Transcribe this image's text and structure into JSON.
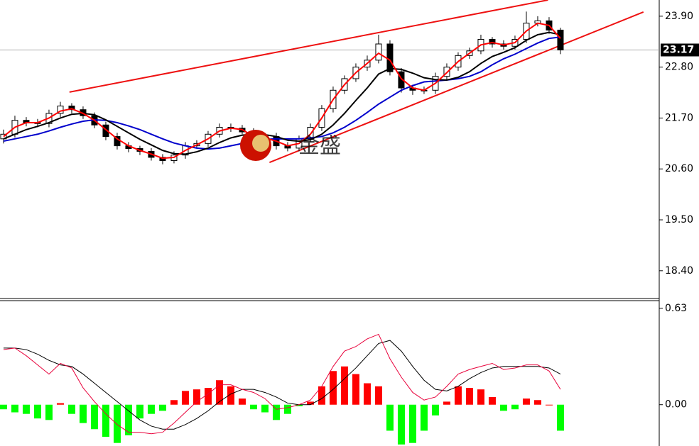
{
  "chart_data": [
    {
      "type": "candlestick",
      "xlim": [
        -0.31,
        57.69
      ],
      "ylim": [
        17.8,
        24.25
      ],
      "yticks": [
        {
          "value": 18.4,
          "label": "18.40"
        },
        {
          "value": 19.5,
          "label": "19.50"
        },
        {
          "value": 20.6,
          "label": "20.60"
        },
        {
          "value": 21.7,
          "label": "21.70"
        },
        {
          "value": 22.8,
          "label": "22.80"
        },
        {
          "value": 23.9,
          "label": "23.90"
        }
      ],
      "last_price": {
        "value": 23.17,
        "label": "23.17"
      },
      "watermark": "金盛",
      "open": [
        21.25,
        21.35,
        21.65,
        21.6,
        21.58,
        21.8,
        21.96,
        21.88,
        21.75,
        21.55,
        21.3,
        21.1,
        21.04,
        20.98,
        20.85,
        20.78,
        20.9,
        21.1,
        21.15,
        21.35,
        21.5,
        21.48,
        21.4,
        21.2,
        21.3,
        21.1,
        21.05,
        21.25,
        21.5,
        21.9,
        22.3,
        22.55,
        22.8,
        22.95,
        23.3,
        22.7,
        22.35,
        22.3,
        22.3,
        22.6,
        22.8,
        23.05,
        23.15,
        23.4,
        23.3,
        23.25,
        23.4,
        23.75,
        23.8,
        23.6
      ],
      "high": [
        21.45,
        21.75,
        21.72,
        21.68,
        21.88,
        22.05,
        22.02,
        21.95,
        21.82,
        21.62,
        21.38,
        21.18,
        21.1,
        21.05,
        20.92,
        20.98,
        21.18,
        21.22,
        21.42,
        21.58,
        21.58,
        21.55,
        21.48,
        21.38,
        21.38,
        21.18,
        21.32,
        21.58,
        21.98,
        22.38,
        22.62,
        22.88,
        23.05,
        23.5,
        23.38,
        22.78,
        22.42,
        22.38,
        22.68,
        22.88,
        23.12,
        23.22,
        23.5,
        23.45,
        23.38,
        23.48,
        24.0,
        23.9,
        23.88,
        23.65
      ],
      "low": [
        21.15,
        21.28,
        21.52,
        21.5,
        21.5,
        21.72,
        21.8,
        21.68,
        21.48,
        21.22,
        21.02,
        20.96,
        20.9,
        20.78,
        20.7,
        20.72,
        20.82,
        21.05,
        21.08,
        21.28,
        21.4,
        21.35,
        21.12,
        21.15,
        21.02,
        20.98,
        20.98,
        21.18,
        21.42,
        21.82,
        22.22,
        22.48,
        22.72,
        22.88,
        22.62,
        22.25,
        22.2,
        22.22,
        22.22,
        22.52,
        22.72,
        22.98,
        23.08,
        23.22,
        23.18,
        23.18,
        23.32,
        23.68,
        23.52,
        23.08
      ],
      "close": [
        21.35,
        21.65,
        21.6,
        21.58,
        21.8,
        21.96,
        21.88,
        21.75,
        21.55,
        21.3,
        21.1,
        21.04,
        20.98,
        20.85,
        20.78,
        20.9,
        21.1,
        21.15,
        21.35,
        21.5,
        21.48,
        21.4,
        21.2,
        21.3,
        21.1,
        21.05,
        21.25,
        21.5,
        21.9,
        22.3,
        22.55,
        22.8,
        22.95,
        23.3,
        22.7,
        22.35,
        22.3,
        22.3,
        22.6,
        22.8,
        23.05,
        23.15,
        23.4,
        23.3,
        23.25,
        23.4,
        23.75,
        23.8,
        23.6,
        23.17
      ],
      "series": [
        {
          "color": "#0000cc",
          "values": [
            21.2,
            21.25,
            21.3,
            21.35,
            21.42,
            21.5,
            21.57,
            21.63,
            21.66,
            21.65,
            21.6,
            21.53,
            21.45,
            21.35,
            21.25,
            21.16,
            21.1,
            21.05,
            21.03,
            21.05,
            21.1,
            21.15,
            21.2,
            21.24,
            21.25,
            21.25,
            21.25,
            21.27,
            21.3,
            21.38,
            21.5,
            21.65,
            21.82,
            22.0,
            22.15,
            22.3,
            22.4,
            22.48,
            22.5,
            22.52,
            22.55,
            22.6,
            22.7,
            22.85,
            22.98,
            23.08,
            23.2,
            23.32,
            23.42,
            23.45
          ]
        },
        {
          "color": "#000000",
          "values": [
            21.25,
            21.35,
            21.45,
            21.52,
            21.6,
            21.7,
            21.78,
            21.8,
            21.77,
            21.66,
            21.52,
            21.38,
            21.24,
            21.12,
            21.0,
            20.93,
            20.92,
            20.97,
            21.05,
            21.17,
            21.27,
            21.33,
            21.35,
            21.34,
            21.3,
            21.22,
            21.2,
            21.23,
            21.35,
            21.55,
            21.8,
            22.08,
            22.35,
            22.65,
            22.77,
            22.75,
            22.67,
            22.57,
            22.53,
            22.52,
            22.58,
            22.7,
            22.88,
            23.03,
            23.12,
            23.22,
            23.38,
            23.5,
            23.55,
            23.5
          ]
        },
        {
          "color": "#ff0000",
          "values": [
            21.3,
            21.5,
            21.6,
            21.6,
            21.7,
            21.85,
            21.9,
            21.8,
            21.65,
            21.45,
            21.25,
            21.1,
            21.0,
            20.92,
            20.83,
            20.85,
            21.0,
            21.12,
            21.25,
            21.42,
            21.48,
            21.45,
            21.3,
            21.27,
            21.2,
            21.1,
            21.15,
            21.35,
            21.7,
            22.1,
            22.42,
            22.68,
            22.88,
            23.1,
            22.95,
            22.55,
            22.35,
            22.3,
            22.45,
            22.68,
            22.92,
            23.1,
            23.28,
            23.33,
            23.28,
            23.33,
            23.58,
            23.75,
            23.7,
            23.42
          ]
        }
      ],
      "trendlines": [
        {
          "color": "#ee1111",
          "x": [
            5.8,
            47.9
          ],
          "y": [
            22.26,
            24.25
          ]
        },
        {
          "color": "#ee1111",
          "x": [
            23.4,
            56.3
          ],
          "y": [
            20.74,
            23.99
          ]
        }
      ]
    },
    {
      "type": "histogram",
      "xlim": [
        -0.31,
        57.69
      ],
      "ylim": [
        -0.27,
        0.68
      ],
      "yticks": [
        {
          "value": 0.63,
          "label": "0.63"
        },
        {
          "value": 0,
          "label": "0.00"
        }
      ],
      "colors": {
        "positive": "#ff0000",
        "negative": "#00ff00"
      },
      "values": [
        -0.03,
        -0.05,
        -0.06,
        -0.09,
        -0.1,
        0.01,
        -0.06,
        -0.12,
        -0.16,
        -0.21,
        -0.25,
        -0.2,
        -0.09,
        -0.06,
        -0.04,
        0.03,
        0.09,
        0.1,
        0.11,
        0.16,
        0.12,
        0.04,
        -0.03,
        -0.05,
        -0.1,
        -0.06,
        -0.01,
        0.02,
        0.12,
        0.22,
        0.25,
        0.2,
        0.14,
        0.12,
        -0.17,
        -0.26,
        -0.25,
        -0.17,
        -0.07,
        0.02,
        0.12,
        0.11,
        0.1,
        0.05,
        -0.04,
        -0.03,
        0.04,
        0.03,
        0.0,
        -0.17
      ],
      "series": [
        {
          "color": "#000000",
          "values": [
            0.37,
            0.37,
            0.36,
            0.33,
            0.29,
            0.26,
            0.25,
            0.2,
            0.14,
            0.08,
            0.02,
            -0.04,
            -0.1,
            -0.14,
            -0.16,
            -0.16,
            -0.13,
            -0.09,
            -0.04,
            0.02,
            0.07,
            0.1,
            0.1,
            0.08,
            0.05,
            0.01,
            0.0,
            0.0,
            0.04,
            0.1,
            0.17,
            0.24,
            0.32,
            0.4,
            0.42,
            0.35,
            0.25,
            0.16,
            0.1,
            0.09,
            0.12,
            0.17,
            0.21,
            0.24,
            0.25,
            0.25,
            0.25,
            0.25,
            0.24,
            0.2
          ]
        },
        {
          "color": "#e8003a",
          "values": [
            0.36,
            0.37,
            0.32,
            0.26,
            0.2,
            0.27,
            0.24,
            0.11,
            0.02,
            -0.06,
            -0.13,
            -0.18,
            -0.18,
            -0.19,
            -0.18,
            -0.12,
            -0.05,
            0.02,
            0.07,
            0.13,
            0.13,
            0.1,
            0.08,
            0.04,
            -0.03,
            -0.02,
            0.0,
            0.03,
            0.12,
            0.25,
            0.35,
            0.38,
            0.43,
            0.46,
            0.3,
            0.18,
            0.08,
            0.03,
            0.05,
            0.12,
            0.2,
            0.23,
            0.25,
            0.27,
            0.23,
            0.24,
            0.26,
            0.26,
            0.22,
            0.1
          ]
        }
      ]
    }
  ]
}
